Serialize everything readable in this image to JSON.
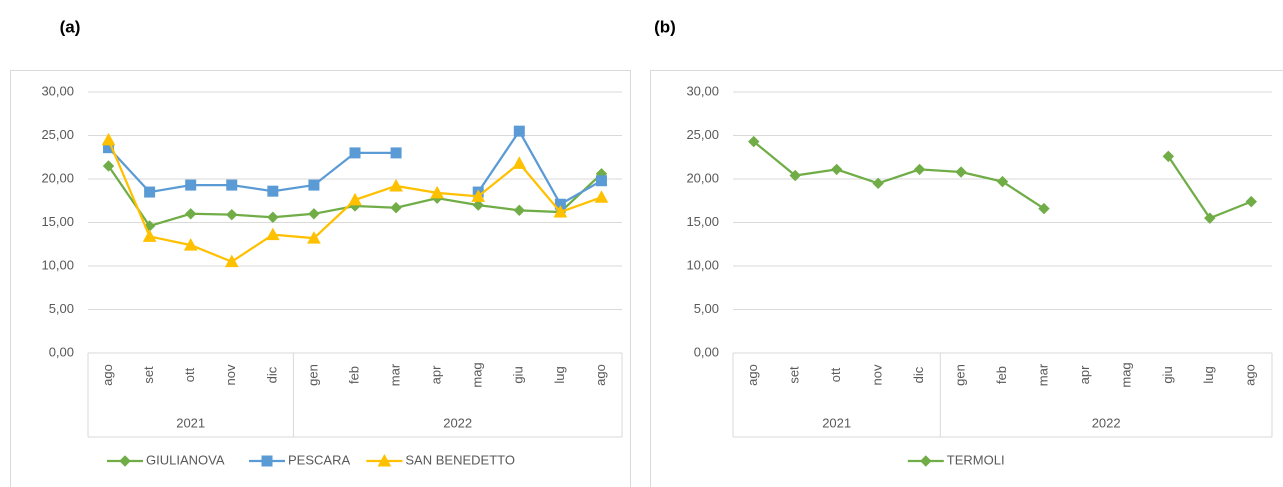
{
  "chart_data": [
    {
      "type": "line",
      "panel_label": "(a)",
      "categories": [
        "ago",
        "set",
        "ott",
        "nov",
        "dic",
        "gen",
        "feb",
        "mar",
        "apr",
        "mag",
        "giu",
        "lug",
        "ago"
      ],
      "category_groups": [
        "2021",
        "2021",
        "2021",
        "2021",
        "2021",
        "2022",
        "2022",
        "2022",
        "2022",
        "2022",
        "2022",
        "2022",
        "2022"
      ],
      "series": [
        {
          "name": "GIULIANOVA",
          "color": "#70ad47",
          "marker": "diamond",
          "values": [
            21.5,
            14.6,
            16.0,
            15.9,
            15.6,
            16.0,
            16.9,
            16.7,
            17.8,
            17.0,
            16.4,
            16.2,
            20.6
          ]
        },
        {
          "name": "PESCARA",
          "color": "#5b9bd5",
          "marker": "square",
          "values": [
            23.6,
            18.5,
            19.3,
            19.3,
            18.6,
            19.3,
            23.0,
            23.0,
            null,
            18.5,
            25.5,
            17.1,
            19.8
          ]
        },
        {
          "name": "SAN BENEDETTO",
          "color": "#ffc000",
          "marker": "triangle",
          "values": [
            24.5,
            13.4,
            12.4,
            10.5,
            13.6,
            13.2,
            17.6,
            19.2,
            18.4,
            18.0,
            21.8,
            16.2,
            17.9
          ]
        }
      ],
      "ylim": [
        0,
        30
      ],
      "yticks": [
        {
          "value": 0,
          "label": "0,00"
        },
        {
          "value": 5,
          "label": "5,00"
        },
        {
          "value": 10,
          "label": "10,00"
        },
        {
          "value": 15,
          "label": "15,00"
        },
        {
          "value": 20,
          "label": "20,00"
        },
        {
          "value": 25,
          "label": "25,00"
        },
        {
          "value": 30,
          "label": "30,00"
        }
      ],
      "grid": true,
      "legend": "bottom"
    },
    {
      "type": "line",
      "panel_label": "(b)",
      "categories": [
        "ago",
        "set",
        "ott",
        "nov",
        "dic",
        "gen",
        "feb",
        "mar",
        "apr",
        "mag",
        "giu",
        "lug",
        "ago"
      ],
      "category_groups": [
        "2021",
        "2021",
        "2021",
        "2021",
        "2021",
        "2022",
        "2022",
        "2022",
        "2022",
        "2022",
        "2022",
        "2022",
        "2022"
      ],
      "series": [
        {
          "name": "TERMOLI",
          "color": "#70ad47",
          "marker": "diamond",
          "values": [
            24.3,
            20.4,
            21.1,
            19.5,
            21.1,
            20.8,
            19.7,
            16.6,
            null,
            null,
            22.6,
            15.5,
            17.4
          ]
        }
      ],
      "ylim": [
        0,
        30
      ],
      "yticks": [
        {
          "value": 0,
          "label": "0,00"
        },
        {
          "value": 5,
          "label": "5,00"
        },
        {
          "value": 10,
          "label": "10,00"
        },
        {
          "value": 15,
          "label": "15,00"
        },
        {
          "value": 20,
          "label": "20,00"
        },
        {
          "value": 25,
          "label": "25,00"
        },
        {
          "value": 30,
          "label": "30,00"
        }
      ],
      "grid": true,
      "legend": "bottom"
    }
  ]
}
